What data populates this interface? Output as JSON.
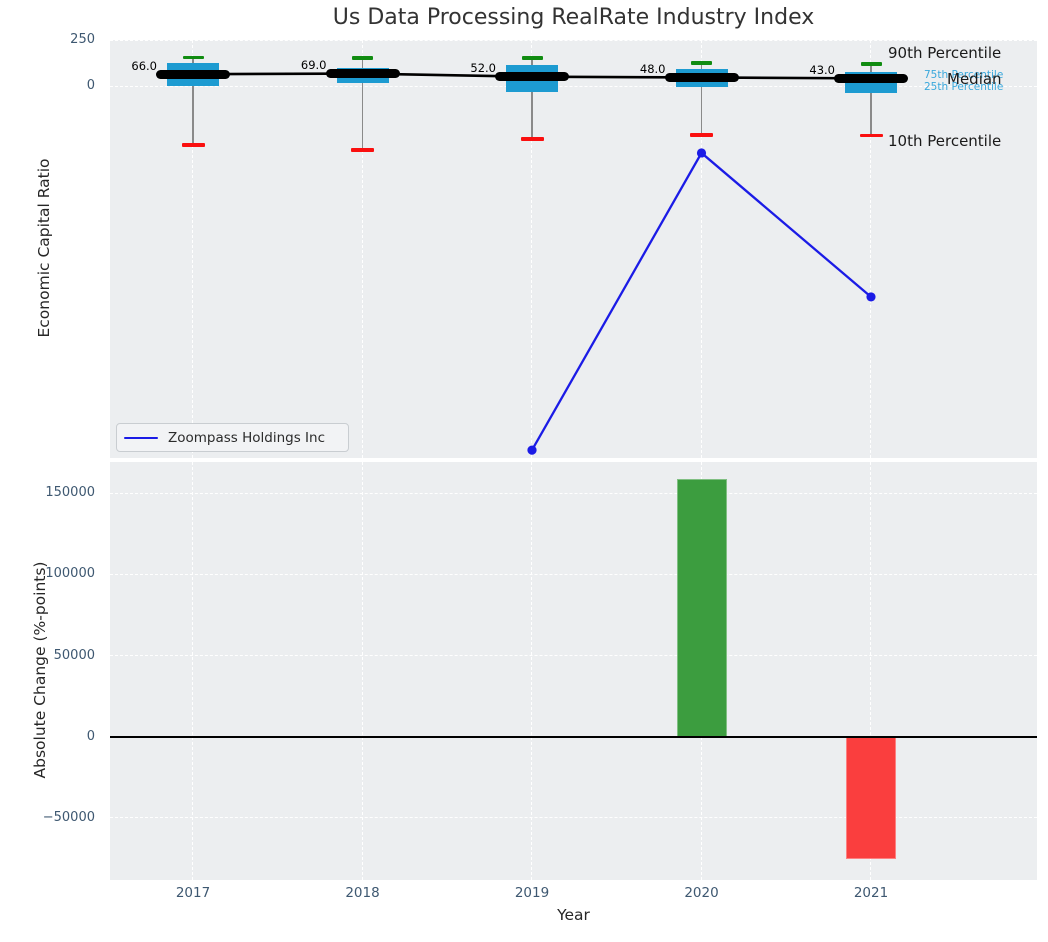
{
  "figure": {
    "title": "Us Data Processing RealRate Industry Index",
    "background": "#ffffff",
    "plot_background": "#eceef0"
  },
  "colors": {
    "box_fill": "#1d9bd1",
    "whisker": "#8a8a8a",
    "cap_90th": "#118c11",
    "cap_10th": "#fa0f0f",
    "median_line": "#000000",
    "company_line": "#1b1be6",
    "bar_positive": "#3c9d3f",
    "bar_negative": "#fa3e3e",
    "tick_text": "#3e5871",
    "percentile_text_blue": "#3aa8dc",
    "grid": "#ffffff"
  },
  "chart_data": [
    {
      "type": "boxplot+line",
      "title": "Us Data Processing RealRate Industry Index",
      "ylabel": "Economic Capital Ratio",
      "categories": [
        "2017",
        "2018",
        "2019",
        "2020",
        "2021"
      ],
      "ylim": [
        -2024,
        252
      ],
      "grid": true,
      "yticks": [
        {
          "v": 250,
          "label": "250"
        },
        {
          "v": 0,
          "label": "0"
        }
      ],
      "boxes": [
        {
          "year": "2017",
          "median": 66.0,
          "q75": 127,
          "q25": 2,
          "p90": 157,
          "p10": -319,
          "median_label": "66.0"
        },
        {
          "year": "2018",
          "median": 69.0,
          "q75": 100,
          "q25": 18,
          "p90": 154,
          "p10": -346,
          "median_label": "69.0"
        },
        {
          "year": "2019",
          "median": 52.0,
          "q75": 116,
          "q25": -31,
          "p90": 154,
          "p10": -287,
          "median_label": "52.0"
        },
        {
          "year": "2020",
          "median": 48.0,
          "q75": 94,
          "q25": -4,
          "p90": 127,
          "p10": -265,
          "median_label": "48.0"
        },
        {
          "year": "2021",
          "median": 43.0,
          "q75": 78,
          "q25": -37,
          "p90": 121,
          "p10": -268,
          "median_label": "43.0"
        }
      ],
      "annotations": {
        "p90": "90th Percentile",
        "p75": "75th Percentile",
        "median": "Median",
        "p25": "25th Percentile",
        "p10": "10th Percentile"
      },
      "series": [
        {
          "name": "Zoompass Holdings Inc",
          "values": [
            null,
            null,
            -1981,
            -363,
            -1147
          ]
        }
      ],
      "legend_position": "lower left"
    },
    {
      "type": "bar",
      "ylabel": "Absolute Change (%-points)",
      "xlabel": "Year",
      "categories": [
        "2017",
        "2018",
        "2019",
        "2020",
        "2021"
      ],
      "ylim": [
        -88200,
        169300
      ],
      "grid": true,
      "yticks": [
        {
          "v": 150000,
          "label": "150000"
        },
        {
          "v": 100000,
          "label": "100000"
        },
        {
          "v": 50000,
          "label": "50000"
        },
        {
          "v": 0,
          "label": "0"
        },
        {
          "v": -50000,
          "label": "−50000"
        }
      ],
      "values": [
        null,
        null,
        null,
        158800,
        -75300
      ],
      "zero_line": true
    }
  ],
  "legend": {
    "label": "Zoompass Holdings Inc"
  }
}
